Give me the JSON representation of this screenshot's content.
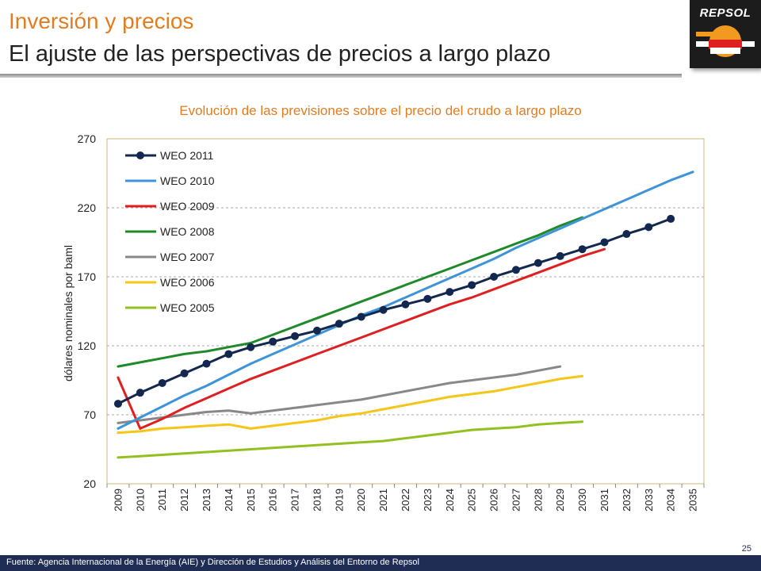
{
  "header": {
    "title": "Inversión y precios",
    "subtitle": "El ajuste de las perspectivas de precios a largo plazo"
  },
  "logo": {
    "text": "REPSOL"
  },
  "colors": {
    "title_orange": "#e37c1f",
    "footer_navy": "#1f2d55"
  },
  "chart_data": {
    "type": "line",
    "title": "Evolución de las previsiones sobre el precio del crudo a largo plazo",
    "xlabel": "",
    "ylabel": "dólares nominales por baml",
    "ylim": [
      20,
      270
    ],
    "yticks": [
      20,
      70,
      120,
      170,
      220,
      270
    ],
    "grid": "horizontal dashed",
    "legend_position": "top-left",
    "categories": [
      "2009",
      "2010",
      "2011",
      "2012",
      "2013",
      "2014",
      "2015",
      "2016",
      "2017",
      "2018",
      "2019",
      "2020",
      "2021",
      "2022",
      "2023",
      "2024",
      "2025",
      "2026",
      "2027",
      "2028",
      "2029",
      "2030",
      "2031",
      "2032",
      "2033",
      "2034",
      "2035"
    ],
    "series": [
      {
        "name": "WEO 2011",
        "color": "#13284f",
        "marker": true,
        "values": [
          78,
          86,
          93,
          100,
          107,
          114,
          119,
          123,
          127,
          131,
          136,
          141,
          146,
          150,
          154,
          159,
          164,
          170,
          175,
          180,
          185,
          190,
          195,
          201,
          206,
          212,
          null
        ]
      },
      {
        "name": "WEO 2010",
        "color": "#3e93d9",
        "marker": false,
        "values": [
          60,
          68,
          76,
          84,
          91,
          99,
          107,
          114,
          121,
          128,
          135,
          142,
          148,
          155,
          162,
          169,
          176,
          183,
          191,
          198,
          205,
          212,
          219,
          226,
          233,
          240,
          246
        ]
      },
      {
        "name": "WEO 2009",
        "color": "#e02020",
        "marker": false,
        "values": [
          97,
          60,
          67,
          75,
          82,
          89,
          96,
          102,
          108,
          114,
          120,
          126,
          132,
          138,
          144,
          150,
          155,
          161,
          167,
          173,
          179,
          185,
          190,
          null,
          null,
          null,
          null
        ]
      },
      {
        "name": "WEO 2008",
        "color": "#1f8a2a",
        "marker": false,
        "values": [
          105,
          108,
          111,
          114,
          116,
          119,
          122,
          128,
          134,
          140,
          146,
          152,
          158,
          164,
          170,
          176,
          182,
          188,
          194,
          200,
          207,
          213,
          null,
          null,
          null,
          null,
          null
        ]
      },
      {
        "name": "WEO 2007",
        "color": "#888888",
        "marker": false,
        "values": [
          64,
          66,
          68,
          70,
          72,
          73,
          71,
          73,
          75,
          77,
          79,
          81,
          84,
          87,
          90,
          93,
          95,
          97,
          99,
          102,
          105,
          null,
          null,
          null,
          null,
          null,
          null
        ]
      },
      {
        "name": "WEO 2006",
        "color": "#f5c518",
        "marker": false,
        "values": [
          57,
          58,
          60,
          61,
          62,
          63,
          60,
          62,
          64,
          66,
          69,
          71,
          74,
          77,
          80,
          83,
          85,
          87,
          90,
          93,
          96,
          98,
          null,
          null,
          null,
          null,
          null
        ]
      },
      {
        "name": "WEO 2005",
        "color": "#92c020",
        "marker": false,
        "values": [
          39,
          40,
          41,
          42,
          43,
          44,
          45,
          46,
          47,
          48,
          49,
          50,
          51,
          53,
          55,
          57,
          59,
          60,
          61,
          63,
          64,
          65,
          null,
          null,
          null,
          null,
          null
        ]
      }
    ]
  },
  "footer": {
    "source": "Fuente: Agencia Internacional de la Energía (AIE) y Dirección de Estudios y Análisis del Entorno de Repsol",
    "page_number": "25"
  }
}
